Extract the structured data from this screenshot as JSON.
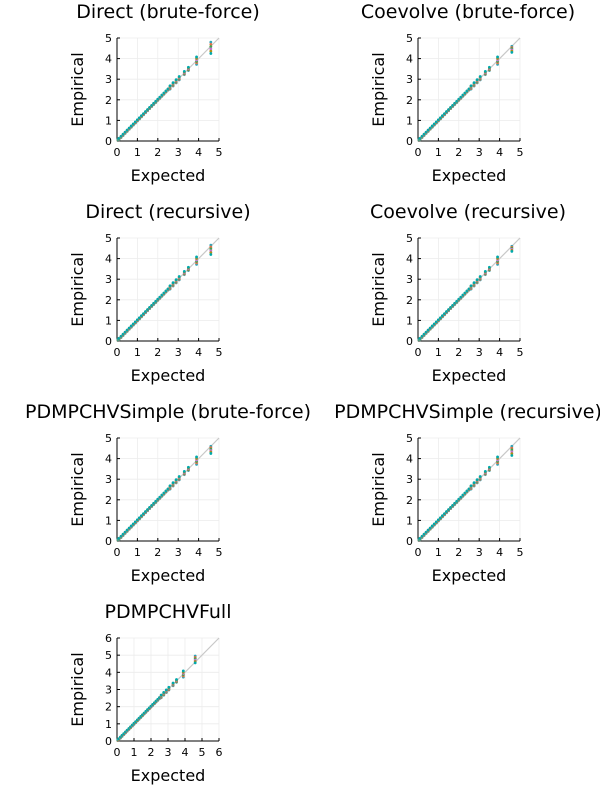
{
  "figure": {
    "background": "#ffffff"
  },
  "colors": {
    "reference_line": "#c8c8c8",
    "grid": "#ececec",
    "series": [
      "#2fa4b8",
      "#e26f46",
      "#3da44d",
      "#c271d2",
      "#ac8d18",
      "#00a9ad"
    ]
  },
  "chart_data": [
    {
      "type": "scatter",
      "title": "Direct (brute-force)",
      "xlabel": "Expected",
      "ylabel": "Empirical",
      "xlim": [
        0,
        5
      ],
      "ylim": [
        0,
        5
      ],
      "xticks": [
        "0",
        "1",
        "2",
        "3",
        "4",
        "5"
      ],
      "yticks": [
        "0",
        "1",
        "2",
        "3",
        "4",
        "5"
      ],
      "grid": true,
      "legend": "none",
      "reference_line": "y=x",
      "expected": [
        0.05,
        0.1,
        0.2,
        0.3,
        0.4,
        0.5,
        0.6,
        0.7,
        0.8,
        0.9,
        1.0,
        1.1,
        1.2,
        1.3,
        1.4,
        1.5,
        1.6,
        1.7,
        1.8,
        1.9,
        2.0,
        2.1,
        2.2,
        2.3,
        2.4,
        2.5,
        2.6,
        2.75,
        2.9,
        3.05,
        3.3,
        3.5,
        3.9,
        4.6
      ],
      "empirical_spread": [
        4.8,
        4.25
      ]
    },
    {
      "type": "scatter",
      "title": "Coevolve (brute-force)",
      "xlabel": "Expected",
      "ylabel": "Empirical",
      "xlim": [
        0,
        5
      ],
      "ylim": [
        0,
        5
      ],
      "xticks": [
        "0",
        "1",
        "2",
        "3",
        "4",
        "5"
      ],
      "yticks": [
        "0",
        "1",
        "2",
        "3",
        "4",
        "5"
      ],
      "grid": true,
      "legend": "none",
      "reference_line": "y=x",
      "expected": [
        0.05,
        0.1,
        0.2,
        0.3,
        0.4,
        0.5,
        0.6,
        0.7,
        0.8,
        0.9,
        1.0,
        1.1,
        1.2,
        1.3,
        1.4,
        1.5,
        1.6,
        1.7,
        1.8,
        1.9,
        2.0,
        2.1,
        2.2,
        2.3,
        2.4,
        2.5,
        2.6,
        2.75,
        2.9,
        3.05,
        3.3,
        3.5,
        3.9,
        4.6
      ],
      "empirical_spread": [
        4.6,
        4.3
      ]
    },
    {
      "type": "scatter",
      "title": "Direct (recursive)",
      "xlabel": "Expected",
      "ylabel": "Empirical",
      "xlim": [
        0,
        5
      ],
      "ylim": [
        0,
        5
      ],
      "xticks": [
        "0",
        "1",
        "2",
        "3",
        "4",
        "5"
      ],
      "yticks": [
        "0",
        "1",
        "2",
        "3",
        "4",
        "5"
      ],
      "grid": true,
      "legend": "none",
      "reference_line": "y=x",
      "expected": [
        0.05,
        0.1,
        0.2,
        0.3,
        0.4,
        0.5,
        0.6,
        0.7,
        0.8,
        0.9,
        1.0,
        1.1,
        1.2,
        1.3,
        1.4,
        1.5,
        1.6,
        1.7,
        1.8,
        1.9,
        2.0,
        2.1,
        2.2,
        2.3,
        2.4,
        2.5,
        2.6,
        2.75,
        2.9,
        3.05,
        3.3,
        3.5,
        3.9,
        4.6
      ],
      "empirical_spread": [
        4.65,
        4.2
      ]
    },
    {
      "type": "scatter",
      "title": "Coevolve (recursive)",
      "xlabel": "Expected",
      "ylabel": "Empirical",
      "xlim": [
        0,
        5
      ],
      "ylim": [
        0,
        5
      ],
      "xticks": [
        "0",
        "1",
        "2",
        "3",
        "4",
        "5"
      ],
      "yticks": [
        "0",
        "1",
        "2",
        "3",
        "4",
        "5"
      ],
      "grid": true,
      "legend": "none",
      "reference_line": "y=x",
      "expected": [
        0.05,
        0.1,
        0.2,
        0.3,
        0.4,
        0.5,
        0.6,
        0.7,
        0.8,
        0.9,
        1.0,
        1.1,
        1.2,
        1.3,
        1.4,
        1.5,
        1.6,
        1.7,
        1.8,
        1.9,
        2.0,
        2.1,
        2.2,
        2.3,
        2.4,
        2.5,
        2.6,
        2.75,
        2.9,
        3.05,
        3.3,
        3.5,
        3.9,
        4.6
      ],
      "empirical_spread": [
        4.6,
        4.35
      ]
    },
    {
      "type": "scatter",
      "title": "PDMPCHVSimple (brute-force)",
      "xlabel": "Expected",
      "ylabel": "Empirical",
      "xlim": [
        0,
        5
      ],
      "ylim": [
        0,
        5
      ],
      "xticks": [
        "0",
        "1",
        "2",
        "3",
        "4",
        "5"
      ],
      "yticks": [
        "0",
        "1",
        "2",
        "3",
        "4",
        "5"
      ],
      "grid": true,
      "legend": "none",
      "reference_line": "y=x",
      "expected": [
        0.05,
        0.1,
        0.2,
        0.3,
        0.4,
        0.5,
        0.6,
        0.7,
        0.8,
        0.9,
        1.0,
        1.1,
        1.2,
        1.3,
        1.4,
        1.5,
        1.6,
        1.7,
        1.8,
        1.9,
        2.0,
        2.1,
        2.2,
        2.3,
        2.4,
        2.5,
        2.6,
        2.75,
        2.9,
        3.05,
        3.3,
        3.5,
        3.9,
        4.6
      ],
      "empirical_spread": [
        4.6,
        4.25
      ]
    },
    {
      "type": "scatter",
      "title": "PDMPCHVSimple (recursive)",
      "xlabel": "Expected",
      "ylabel": "Empirical",
      "xlim": [
        0,
        5
      ],
      "ylim": [
        0,
        5
      ],
      "xticks": [
        "0",
        "1",
        "2",
        "3",
        "4",
        "5"
      ],
      "yticks": [
        "0",
        "1",
        "2",
        "3",
        "4",
        "5"
      ],
      "grid": true,
      "legend": "none",
      "reference_line": "y=x",
      "expected": [
        0.05,
        0.1,
        0.2,
        0.3,
        0.4,
        0.5,
        0.6,
        0.7,
        0.8,
        0.9,
        1.0,
        1.1,
        1.2,
        1.3,
        1.4,
        1.5,
        1.6,
        1.7,
        1.8,
        1.9,
        2.0,
        2.1,
        2.2,
        2.3,
        2.4,
        2.5,
        2.6,
        2.75,
        2.9,
        3.05,
        3.3,
        3.5,
        3.9,
        4.6
      ],
      "empirical_spread": [
        4.6,
        4.15
      ]
    },
    {
      "type": "scatter",
      "title": "PDMPCHVFull",
      "xlabel": "Expected",
      "ylabel": "Empirical",
      "xlim": [
        0,
        6
      ],
      "ylim": [
        0,
        6
      ],
      "xticks": [
        "0",
        "1",
        "2",
        "3",
        "4",
        "5",
        "6"
      ],
      "yticks": [
        "0",
        "1",
        "2",
        "3",
        "4",
        "5",
        "6"
      ],
      "grid": true,
      "legend": "none",
      "reference_line": "y=x",
      "expected": [
        0.05,
        0.1,
        0.2,
        0.3,
        0.4,
        0.5,
        0.6,
        0.7,
        0.8,
        0.9,
        1.0,
        1.1,
        1.2,
        1.3,
        1.4,
        1.5,
        1.6,
        1.7,
        1.8,
        1.9,
        2.0,
        2.1,
        2.2,
        2.3,
        2.4,
        2.5,
        2.6,
        2.75,
        2.9,
        3.05,
        3.3,
        3.5,
        3.9,
        4.6
      ],
      "empirical_spread": [
        4.95,
        4.55
      ]
    }
  ]
}
